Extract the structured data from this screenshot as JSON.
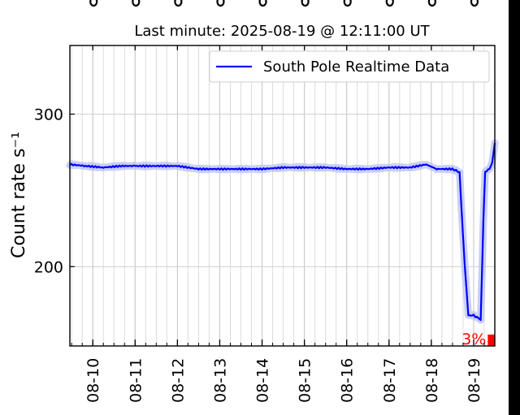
{
  "chart_data": {
    "type": "line",
    "title": "Last minute: 2025-08-19 @ 12:11:00  UT",
    "ylabel": "Count rate s⁻¹",
    "xlabel": "",
    "xlim": [
      "2025-08-09T11:00",
      "2025-08-19T12:00"
    ],
    "ylim": [
      148,
      345
    ],
    "yticks": [
      200,
      300
    ],
    "xticks": [
      "08-10",
      "08-11",
      "08-12",
      "08-13",
      "08-14",
      "08-15",
      "08-16",
      "08-17",
      "08-18",
      "08-19"
    ],
    "grid": true,
    "legend": "top-right",
    "series": [
      {
        "name": "South Pole Realtime Data",
        "color": "#0000ff",
        "band_color": "#b8c0f4",
        "points": [
          [
            "2025-08-09T11:00",
            267
          ],
          [
            "2025-08-09T20:00",
            266
          ],
          [
            "2025-08-10T06:00",
            265
          ],
          [
            "2025-08-10T16:00",
            266
          ],
          [
            "2025-08-11T00:00",
            266
          ],
          [
            "2025-08-11T12:00",
            266
          ],
          [
            "2025-08-12T00:00",
            266
          ],
          [
            "2025-08-12T12:00",
            264
          ],
          [
            "2025-08-13T00:00",
            264
          ],
          [
            "2025-08-13T12:00",
            264
          ],
          [
            "2025-08-14T00:00",
            264
          ],
          [
            "2025-08-14T12:00",
            265
          ],
          [
            "2025-08-15T00:00",
            265
          ],
          [
            "2025-08-15T12:00",
            265
          ],
          [
            "2025-08-16T00:00",
            264
          ],
          [
            "2025-08-16T12:00",
            264
          ],
          [
            "2025-08-17T00:00",
            265
          ],
          [
            "2025-08-17T12:00",
            265
          ],
          [
            "2025-08-17T21:00",
            267
          ],
          [
            "2025-08-18T03:00",
            264
          ],
          [
            "2025-08-18T12:00",
            264
          ],
          [
            "2025-08-18T16:00",
            262
          ],
          [
            "2025-08-18T17:00",
            240
          ],
          [
            "2025-08-18T19:00",
            200
          ],
          [
            "2025-08-18T21:00",
            168
          ],
          [
            "2025-08-19T00:00",
            168
          ],
          [
            "2025-08-19T03:00",
            166
          ],
          [
            "2025-08-19T04:00",
            165
          ],
          [
            "2025-08-19T05:30",
            230
          ],
          [
            "2025-08-19T06:30",
            262
          ],
          [
            "2025-08-19T09:00",
            264
          ],
          [
            "2025-08-19T10:30",
            268
          ],
          [
            "2025-08-19T12:00",
            281
          ]
        ]
      }
    ],
    "annotation": {
      "text": "3%",
      "color": "#ff0000",
      "fraction": 0.03
    }
  }
}
